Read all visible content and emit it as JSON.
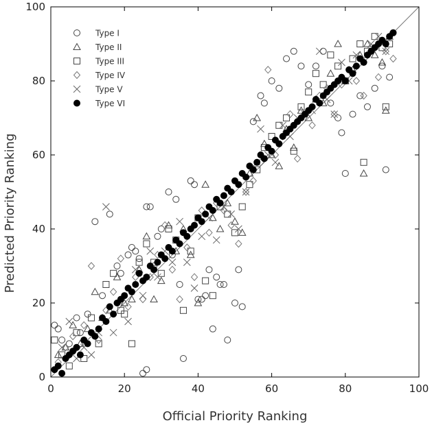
{
  "chart_data": {
    "type": "scatter",
    "title": "",
    "xlabel": "Official Priority Ranking",
    "ylabel": "Predicted Priority Ranking",
    "xlim": [
      0,
      100
    ],
    "ylim": [
      0,
      100
    ],
    "xticks": [
      0,
      20,
      40,
      60,
      80,
      100
    ],
    "yticks": [
      0,
      20,
      40,
      60,
      80,
      100
    ],
    "grid": false,
    "legend_position": "top-left",
    "reference_line": "y = x",
    "series": [
      {
        "name": "Type I",
        "marker": "circle-open",
        "x": [
          1,
          2,
          3,
          5,
          7,
          8,
          10,
          12,
          14,
          16,
          18,
          19,
          21,
          22,
          23,
          24,
          25,
          26,
          26,
          27,
          28,
          29,
          30,
          32,
          33,
          34,
          35,
          36,
          38,
          39,
          40,
          41,
          42,
          43,
          44,
          45,
          46,
          47,
          48,
          50,
          51,
          52,
          55,
          57,
          58,
          60,
          62,
          64,
          66,
          68,
          70,
          72,
          74,
          76,
          78,
          79,
          80,
          82,
          84,
          86,
          88,
          90,
          91,
          92,
          93
        ],
        "y": [
          14,
          13,
          10,
          9,
          16,
          12,
          17,
          42,
          22,
          44,
          30,
          28,
          33,
          35,
          34,
          32,
          1,
          2,
          46,
          46,
          30,
          38,
          40,
          50,
          33,
          48,
          25,
          5,
          53,
          52,
          21,
          21,
          22,
          29,
          13,
          27,
          25,
          25,
          10,
          20,
          29,
          19,
          69,
          76,
          74,
          80,
          78,
          86,
          88,
          84,
          79,
          84,
          88,
          74,
          70,
          66,
          55,
          71,
          76,
          73,
          78,
          84,
          56,
          81,
          93
        ]
      },
      {
        "name": "Type II",
        "marker": "triangle-open",
        "x": [
          2,
          4,
          6,
          8,
          10,
          12,
          14,
          16,
          18,
          20,
          22,
          24,
          26,
          28,
          30,
          32,
          34,
          36,
          38,
          40,
          42,
          44,
          46,
          48,
          50,
          52,
          54,
          56,
          58,
          60,
          62,
          64,
          66,
          68,
          70,
          72,
          74,
          76,
          78,
          80,
          82,
          84,
          85,
          86,
          88,
          90,
          91,
          92
        ],
        "y": [
          6,
          8,
          14,
          9,
          13,
          23,
          16,
          18,
          27,
          20,
          21,
          29,
          38,
          21,
          26,
          41,
          34,
          40,
          33,
          20,
          52,
          43,
          40,
          47,
          42,
          39,
          55,
          70,
          63,
          60,
          57,
          67,
          62,
          72,
          70,
          75,
          74,
          82,
          90,
          80,
          83,
          87,
          55,
          90,
          87,
          85,
          72,
          92
        ]
      },
      {
        "name": "Type III",
        "marker": "square-open",
        "x": [
          1,
          3,
          5,
          7,
          9,
          11,
          13,
          15,
          17,
          19,
          20,
          22,
          24,
          26,
          28,
          30,
          32,
          34,
          36,
          38,
          40,
          42,
          44,
          46,
          48,
          50,
          52,
          54,
          56,
          58,
          60,
          62,
          64,
          66,
          68,
          70,
          72,
          74,
          76,
          78,
          80,
          82,
          84,
          85,
          86,
          88,
          90,
          91,
          92
        ],
        "y": [
          10,
          6,
          3,
          12,
          5,
          16,
          9,
          25,
          28,
          18,
          17,
          9,
          31,
          36,
          31,
          28,
          40,
          37,
          18,
          34,
          43,
          26,
          22,
          46,
          44,
          39,
          46,
          52,
          56,
          62,
          65,
          68,
          70,
          61,
          73,
          77,
          82,
          79,
          87,
          84,
          80,
          86,
          90,
          58,
          88,
          92,
          89,
          73,
          90
        ]
      },
      {
        "name": "Type IV",
        "marker": "diamond-open",
        "x": [
          2,
          4,
          6,
          9,
          11,
          13,
          15,
          17,
          19,
          21,
          23,
          25,
          27,
          29,
          31,
          33,
          35,
          37,
          39,
          41,
          43,
          45,
          47,
          49,
          51,
          53,
          55,
          57,
          59,
          61,
          63,
          65,
          67,
          69,
          71,
          73,
          75,
          77,
          79,
          81,
          83,
          85,
          87,
          89,
          91,
          93
        ],
        "y": [
          4,
          8,
          11,
          14,
          30,
          10,
          18,
          23,
          32,
          19,
          27,
          21,
          27,
          33,
          41,
          29,
          21,
          35,
          27,
          45,
          39,
          47,
          45,
          41,
          36,
          50,
          53,
          58,
          83,
          60,
          65,
          71,
          59,
          71,
          68,
          76,
          78,
          71,
          79,
          83,
          80,
          76,
          89,
          81,
          88,
          86
        ]
      },
      {
        "name": "Type V",
        "marker": "cross",
        "x": [
          3,
          5,
          7,
          9,
          11,
          13,
          15,
          17,
          19,
          21,
          23,
          25,
          27,
          29,
          31,
          33,
          35,
          37,
          39,
          41,
          43,
          45,
          47,
          49,
          51,
          53,
          55,
          57,
          59,
          61,
          63,
          65,
          67,
          69,
          71,
          73,
          75,
          77,
          79,
          81,
          83,
          85,
          87,
          89,
          91
        ],
        "y": [
          8,
          15,
          5,
          8,
          6,
          12,
          46,
          12,
          20,
          15,
          29,
          22,
          34,
          27,
          34,
          31,
          42,
          31,
          24,
          38,
          43,
          37,
          46,
          44,
          40,
          50,
          57,
          67,
          60,
          58,
          68,
          65,
          70,
          71,
          72,
          88,
          75,
          71,
          85,
          80,
          87,
          86,
          90,
          92,
          88
        ]
      },
      {
        "name": "Type VI",
        "marker": "circle-filled",
        "x": [
          1,
          2,
          3,
          4,
          5,
          6,
          7,
          8,
          9,
          10,
          11,
          12,
          13,
          14,
          15,
          16,
          17,
          18,
          19,
          20,
          21,
          22,
          23,
          24,
          25,
          26,
          27,
          28,
          29,
          30,
          31,
          32,
          33,
          34,
          35,
          36,
          37,
          38,
          39,
          40,
          41,
          42,
          43,
          44,
          45,
          46,
          47,
          48,
          49,
          50,
          51,
          52,
          53,
          54,
          55,
          56,
          57,
          58,
          59,
          60,
          61,
          62,
          63,
          64,
          65,
          66,
          67,
          68,
          69,
          70,
          71,
          72,
          73,
          74,
          75,
          76,
          77,
          78,
          79,
          80,
          81,
          82,
          83,
          84,
          85,
          86,
          87,
          88,
          89,
          90,
          91,
          92,
          93
        ],
        "y": [
          2,
          3,
          1,
          5,
          6,
          7,
          8,
          6,
          10,
          9,
          12,
          11,
          13,
          16,
          15,
          19,
          17,
          20,
          21,
          22,
          24,
          23,
          25,
          28,
          26,
          27,
          30,
          29,
          31,
          33,
          32,
          35,
          34,
          37,
          36,
          39,
          38,
          40,
          41,
          43,
          42,
          44,
          46,
          45,
          48,
          47,
          49,
          51,
          50,
          53,
          52,
          55,
          54,
          57,
          56,
          58,
          60,
          59,
          62,
          61,
          64,
          63,
          65,
          66,
          67,
          68,
          69,
          70,
          71,
          72,
          73,
          75,
          74,
          76,
          77,
          78,
          79,
          80,
          81,
          80,
          83,
          82,
          84,
          86,
          85,
          87,
          88,
          89,
          90,
          91,
          90,
          92,
          93
        ]
      }
    ]
  }
}
